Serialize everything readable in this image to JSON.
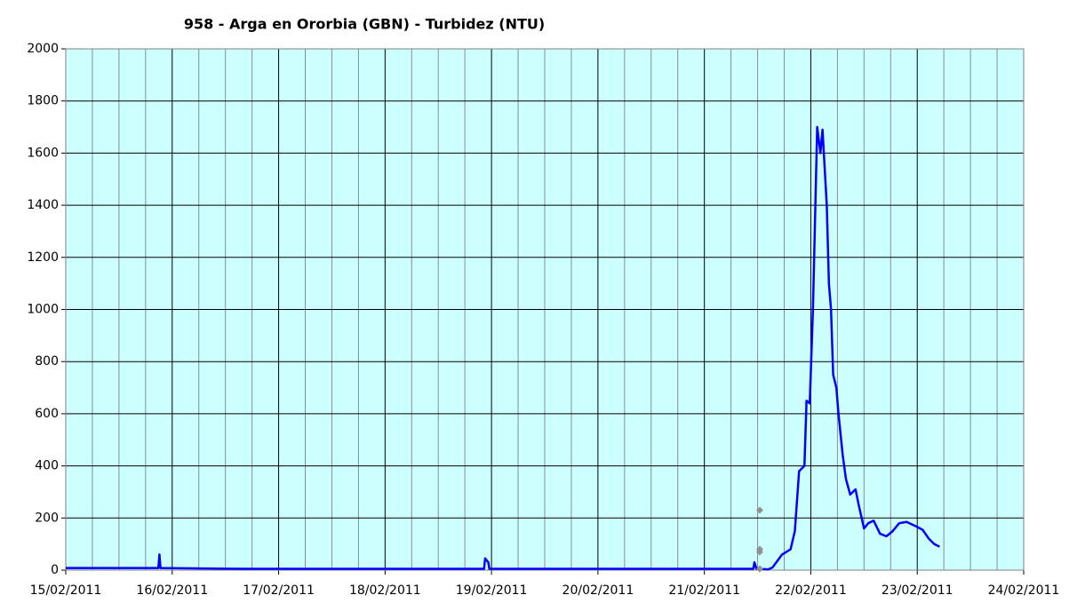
{
  "chart_data": {
    "type": "line",
    "title": "958 - Arga en Ororbia (GBN) - Turbidez (NTU)",
    "xlim": [
      0,
      9
    ],
    "xticks": [
      {
        "value": 0,
        "label": "15/02/2011"
      },
      {
        "value": 1,
        "label": "16/02/2011"
      },
      {
        "value": 2,
        "label": "17/02/2011"
      },
      {
        "value": 3,
        "label": "18/02/2011"
      },
      {
        "value": 4,
        "label": "19/02/2011"
      },
      {
        "value": 5,
        "label": "20/02/2011"
      },
      {
        "value": 6,
        "label": "21/02/2011"
      },
      {
        "value": 7,
        "label": "22/02/2011"
      },
      {
        "value": 8,
        "label": "23/02/2011"
      },
      {
        "value": 9,
        "label": "24/02/2011"
      }
    ],
    "ylim": [
      0,
      2000
    ],
    "yticks": [
      0,
      200,
      400,
      600,
      800,
      1000,
      1200,
      1400,
      1600,
      1800,
      2000
    ],
    "grid": true,
    "minor_grid_divisions": 4,
    "background": "#ccffff",
    "series": [
      {
        "color": "#0000ff",
        "x": [
          0,
          0.87,
          0.88,
          0.89,
          1.7,
          3.93,
          3.94,
          3.97,
          3.98,
          6.0,
          6.46,
          6.47,
          6.49,
          6.6,
          6.64,
          6.73,
          6.81,
          6.85,
          6.89,
          6.94,
          6.96,
          6.99,
          7.02,
          7.06,
          7.09,
          7.11,
          7.15,
          7.17,
          7.19,
          7.21,
          7.24,
          7.26,
          7.3,
          7.33,
          7.37,
          7.42,
          7.45,
          7.5,
          7.54,
          7.59,
          7.65,
          7.71,
          7.77,
          7.83,
          7.9,
          7.98,
          8.05,
          8.11,
          8.16,
          8.21
        ],
        "values": [
          8,
          8,
          60,
          8,
          5,
          5,
          45,
          30,
          5,
          5,
          5,
          30,
          5,
          3,
          10,
          60,
          80,
          150,
          380,
          400,
          650,
          640,
          1000,
          1700,
          1600,
          1690,
          1400,
          1100,
          1000,
          750,
          700,
          600,
          440,
          350,
          290,
          310,
          250,
          160,
          180,
          190,
          140,
          130,
          150,
          180,
          185,
          170,
          155,
          120,
          100,
          90
        ]
      },
      {
        "color": "#909090",
        "markers_only": true,
        "x": [
          6.52,
          6.52,
          6.52,
          6.52
        ],
        "values": [
          230,
          80,
          70,
          5
        ]
      }
    ]
  }
}
